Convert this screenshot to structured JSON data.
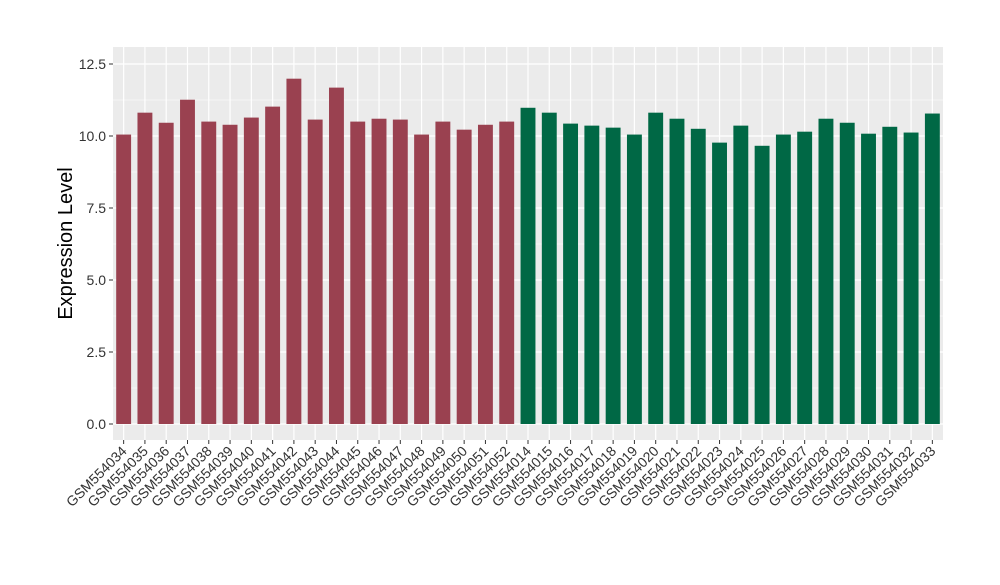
{
  "chart_data": {
    "type": "bar",
    "title": "",
    "xlabel": "",
    "ylabel": "Expression Level",
    "ylim": [
      -0.4,
      12.9
    ],
    "yticks": [
      "0.0",
      "2.5",
      "5.0",
      "7.5",
      "10.0",
      "12.5"
    ],
    "grid": true,
    "legend": "none",
    "categories": [
      "GSM554034",
      "GSM554035",
      "GSM554036",
      "GSM554037",
      "GSM554038",
      "GSM554039",
      "GSM554040",
      "GSM554041",
      "GSM554042",
      "GSM554043",
      "GSM554044",
      "GSM554045",
      "GSM554046",
      "GSM554047",
      "GSM554048",
      "GSM554049",
      "GSM554050",
      "GSM554051",
      "GSM554052",
      "GSM554014",
      "GSM554015",
      "GSM554016",
      "GSM554017",
      "GSM554018",
      "GSM554019",
      "GSM554020",
      "GSM554021",
      "GSM554022",
      "GSM554023",
      "GSM554024",
      "GSM554025",
      "GSM554026",
      "GSM554027",
      "GSM554028",
      "GSM554029",
      "GSM554030",
      "GSM554031",
      "GSM554032",
      "GSM554033"
    ],
    "values": [
      10.05,
      10.81,
      10.46,
      11.26,
      10.5,
      10.39,
      10.64,
      11.02,
      11.99,
      10.57,
      11.68,
      10.5,
      10.6,
      10.57,
      10.05,
      10.5,
      10.22,
      10.39,
      10.5,
      10.98,
      10.81,
      10.43,
      10.36,
      10.29,
      10.05,
      10.81,
      10.6,
      10.25,
      9.77,
      10.36,
      9.66,
      10.05,
      10.15,
      10.6,
      10.46,
      10.08,
      10.32,
      10.12,
      10.78
    ],
    "group_colors": [
      "#9A4150",
      "#9A4150",
      "#9A4150",
      "#9A4150",
      "#9A4150",
      "#9A4150",
      "#9A4150",
      "#9A4150",
      "#9A4150",
      "#9A4150",
      "#9A4150",
      "#9A4150",
      "#9A4150",
      "#9A4150",
      "#9A4150",
      "#9A4150",
      "#9A4150",
      "#9A4150",
      "#9A4150",
      "#006845",
      "#006845",
      "#006845",
      "#006845",
      "#006845",
      "#006845",
      "#006845",
      "#006845",
      "#006845",
      "#006845",
      "#006845",
      "#006845",
      "#006845",
      "#006845",
      "#006845",
      "#006845",
      "#006845",
      "#006845",
      "#006845",
      "#006845"
    ],
    "panel_background": "#EBEBEB"
  }
}
